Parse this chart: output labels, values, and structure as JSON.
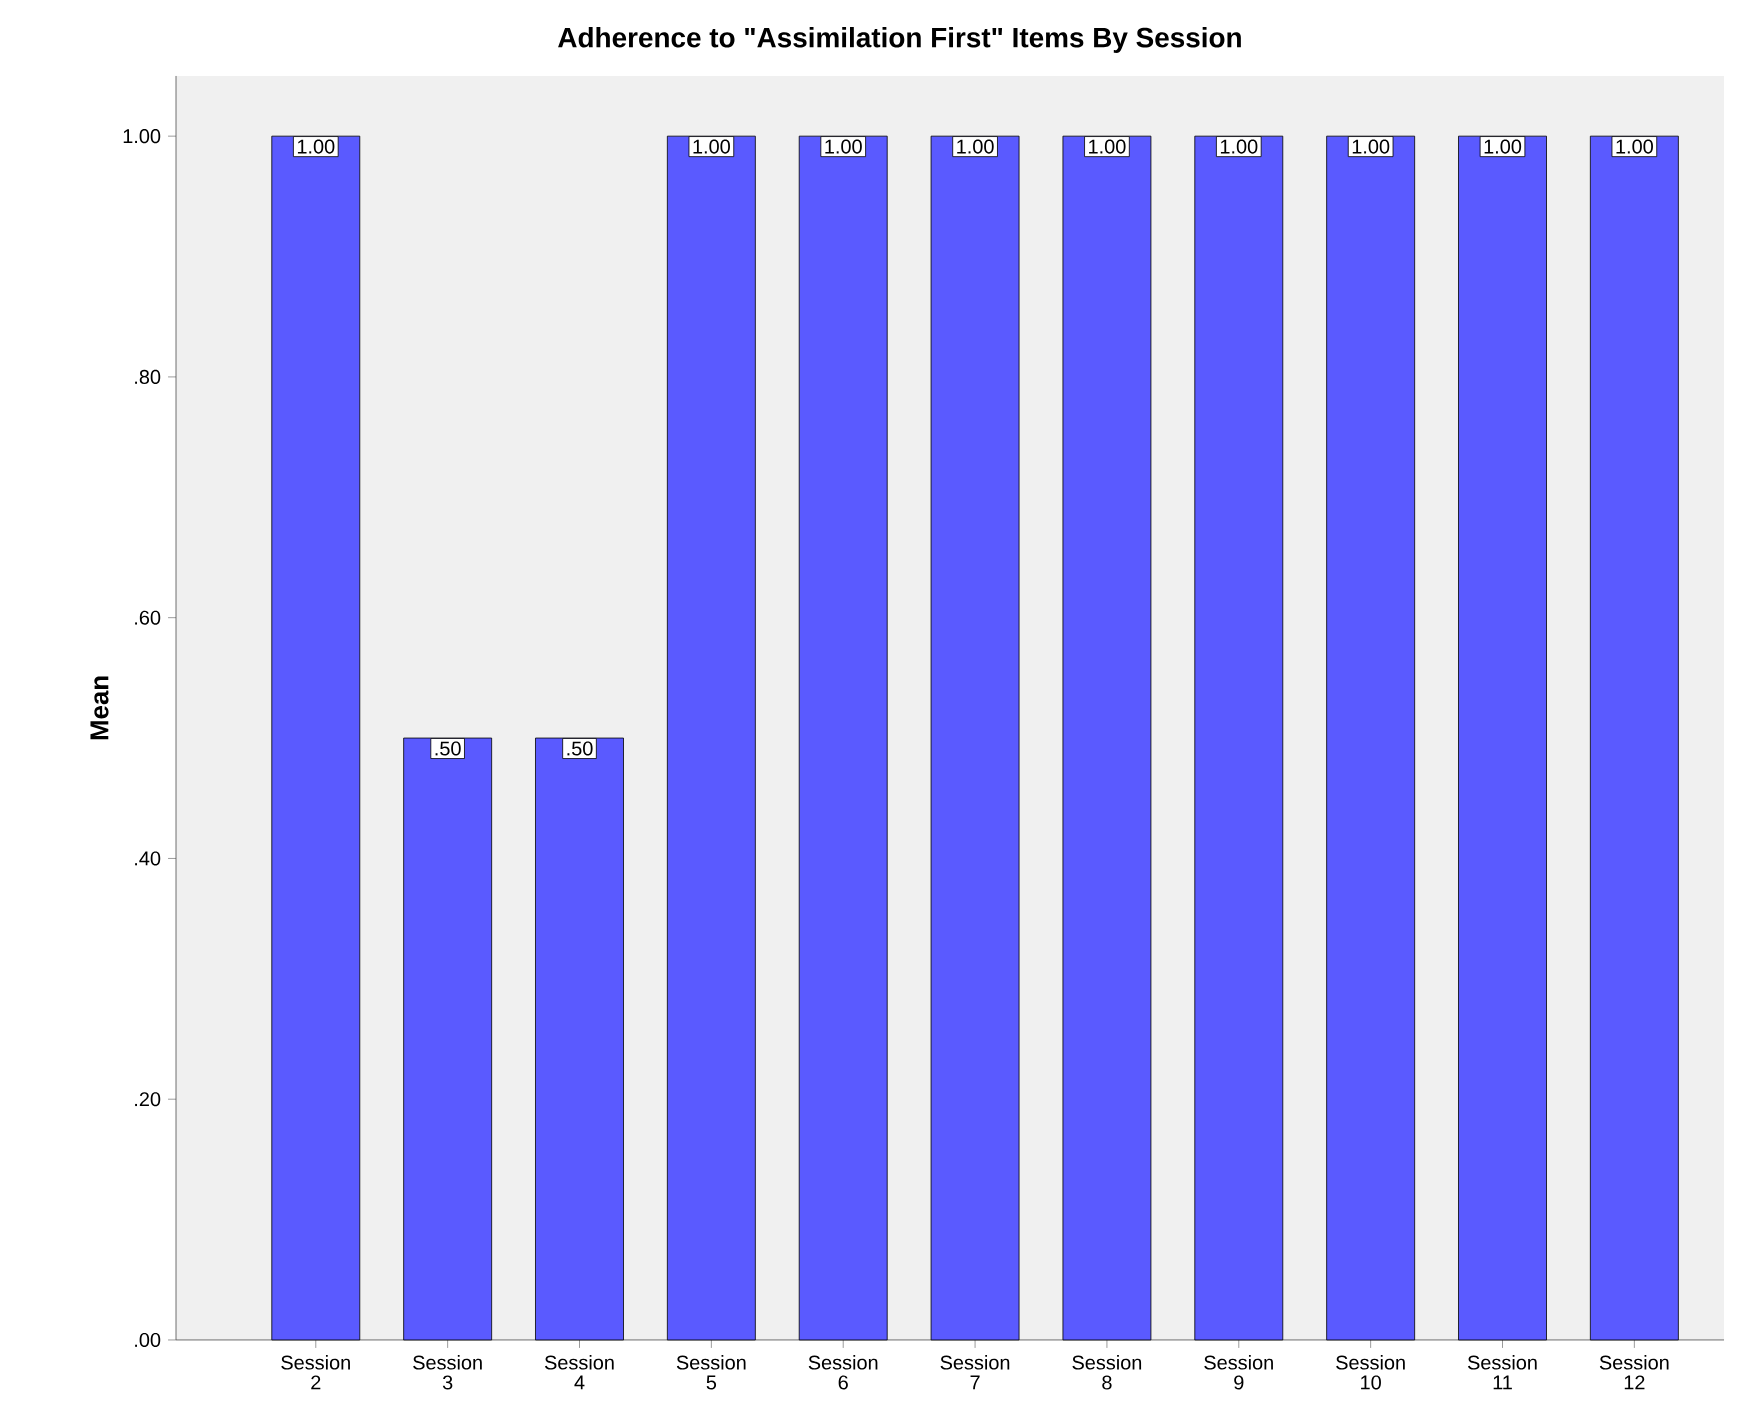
{
  "chart_data": {
    "type": "bar",
    "title": "Adherence to \"Assimilation First\" Items By Session",
    "ylabel": "Mean",
    "categories": [
      "Session 2",
      "Session 3",
      "Session 4",
      "Session 5",
      "Session 6",
      "Session 7",
      "Session 8",
      "Session 9",
      "Session 10",
      "Session 11",
      "Session 12"
    ],
    "values": [
      1.0,
      0.5,
      0.5,
      1.0,
      1.0,
      1.0,
      1.0,
      1.0,
      1.0,
      1.0,
      1.0
    ],
    "value_labels": [
      "1.00",
      ".50",
      ".50",
      "1.00",
      "1.00",
      "1.00",
      "1.00",
      "1.00",
      "1.00",
      "1.00",
      "1.00"
    ],
    "color": "#5a5aff",
    "ylim": [
      0,
      1.05
    ],
    "yticks": [
      {
        "value": 0,
        "label": ".00"
      },
      {
        "value": 0.2,
        "label": ".20"
      },
      {
        "value": 0.4,
        "label": ".40"
      },
      {
        "value": 0.6,
        "label": ".60"
      },
      {
        "value": 0.8,
        "label": ".80"
      },
      {
        "value": 1.0,
        "label": "1.00"
      }
    ],
    "grid": false
  }
}
